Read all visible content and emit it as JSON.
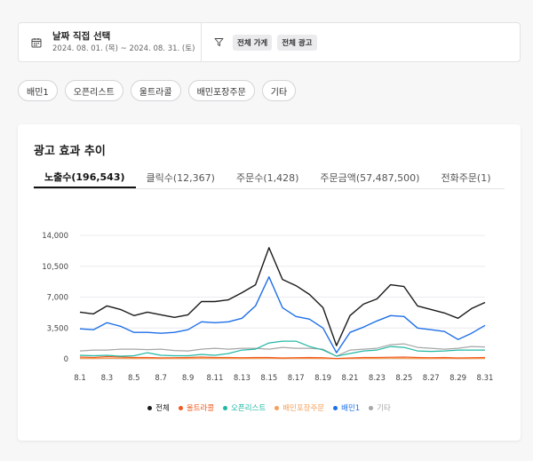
{
  "date_filter": {
    "title": "날짜 직접 선택",
    "range": "2024. 08. 01. (목) ~ 2024. 08. 31. (토)"
  },
  "filters": {
    "tags": [
      "전체 가게",
      "전체 광고"
    ]
  },
  "chips": [
    "배민1",
    "오픈리스트",
    "울트라콜",
    "배민포장주문",
    "기타"
  ],
  "card": {
    "title": "광고 효과 추이",
    "tabs": [
      "노출수(196,543)",
      "클릭수(12,367)",
      "주문수(1,428)",
      "주문금액(57,487,500)",
      "전화주문(1)"
    ],
    "active_tab": 0
  },
  "chart_data": {
    "type": "line",
    "x": [
      "8.1",
      "8.2",
      "8.3",
      "8.4",
      "8.5",
      "8.6",
      "8.7",
      "8.8",
      "8.9",
      "8.10",
      "8.11",
      "8.12",
      "8.13",
      "8.14",
      "8.15",
      "8.16",
      "8.17",
      "8.18",
      "8.19",
      "8.20",
      "8.21",
      "8.22",
      "8.23",
      "8.24",
      "8.25",
      "8.26",
      "8.27",
      "8.28",
      "8.29",
      "8.30",
      "8.31"
    ],
    "x_ticks": [
      "8.1",
      "8.3",
      "8.5",
      "8.7",
      "8.9",
      "8.11",
      "8.13",
      "8.15",
      "8.17",
      "8.19",
      "8.21",
      "8.23",
      "8.25",
      "8.27",
      "8.29",
      "8.31"
    ],
    "y_ticks": [
      0,
      3500,
      7000,
      10500,
      14000
    ],
    "y_tick_labels": [
      "0",
      "3,500",
      "7,000",
      "10,500",
      "14,000"
    ],
    "ylim": [
      0,
      14000
    ],
    "grid": true,
    "legend": "bottom-center",
    "series": [
      {
        "name": "전체",
        "color": "#1a1a1a",
        "values": [
          5300,
          5100,
          6000,
          5600,
          4900,
          5300,
          5000,
          4700,
          5000,
          6500,
          6500,
          6700,
          7500,
          8400,
          12600,
          9000,
          8300,
          7300,
          5800,
          1500,
          4900,
          6200,
          6800,
          8400,
          8200,
          6000,
          5600,
          5200,
          4600,
          5700,
          6400
        ]
      },
      {
        "name": "울트라콜",
        "color": "#f05a1e",
        "values": [
          200,
          150,
          250,
          200,
          150,
          150,
          120,
          130,
          150,
          200,
          150,
          150,
          130,
          150,
          150,
          100,
          130,
          150,
          130,
          40,
          100,
          150,
          150,
          180,
          200,
          150,
          130,
          150,
          100,
          130,
          150
        ]
      },
      {
        "name": "오픈리스트",
        "color": "#23b8a5",
        "values": [
          400,
          350,
          400,
          300,
          350,
          700,
          400,
          350,
          350,
          500,
          400,
          600,
          1000,
          1100,
          1800,
          2000,
          2000,
          1400,
          1000,
          300,
          600,
          900,
          1000,
          1400,
          1300,
          900,
          850,
          900,
          1000,
          1000,
          1000
        ]
      },
      {
        "name": "배민포장주문",
        "color": "#f5a05a",
        "values": [
          50,
          40,
          60,
          50,
          40,
          50,
          40,
          30,
          40,
          60,
          50,
          50,
          40,
          50,
          60,
          40,
          50,
          50,
          40,
          20,
          30,
          50,
          50,
          60,
          50,
          40,
          40,
          50,
          40,
          40,
          50
        ]
      },
      {
        "name": "배민1",
        "color": "#1e6fe8",
        "values": [
          3400,
          3300,
          4100,
          3700,
          3000,
          3000,
          2900,
          3000,
          3300,
          4200,
          4100,
          4200,
          4600,
          6000,
          9300,
          5800,
          4800,
          4500,
          3500,
          700,
          3000,
          3600,
          4300,
          4900,
          4800,
          3500,
          3300,
          3100,
          2200,
          2900,
          3800
        ]
      },
      {
        "name": "기타",
        "color": "#a6a6a6",
        "values": [
          900,
          1000,
          1000,
          1100,
          1100,
          1050,
          1100,
          950,
          900,
          1100,
          1200,
          1100,
          1200,
          1200,
          1100,
          1300,
          1200,
          1200,
          1100,
          300,
          1000,
          1100,
          1200,
          1600,
          1700,
          1300,
          1200,
          1100,
          1200,
          1400,
          1350
        ]
      }
    ]
  },
  "icons": {
    "calendar": "calendar-icon",
    "filter": "funnel-icon"
  }
}
